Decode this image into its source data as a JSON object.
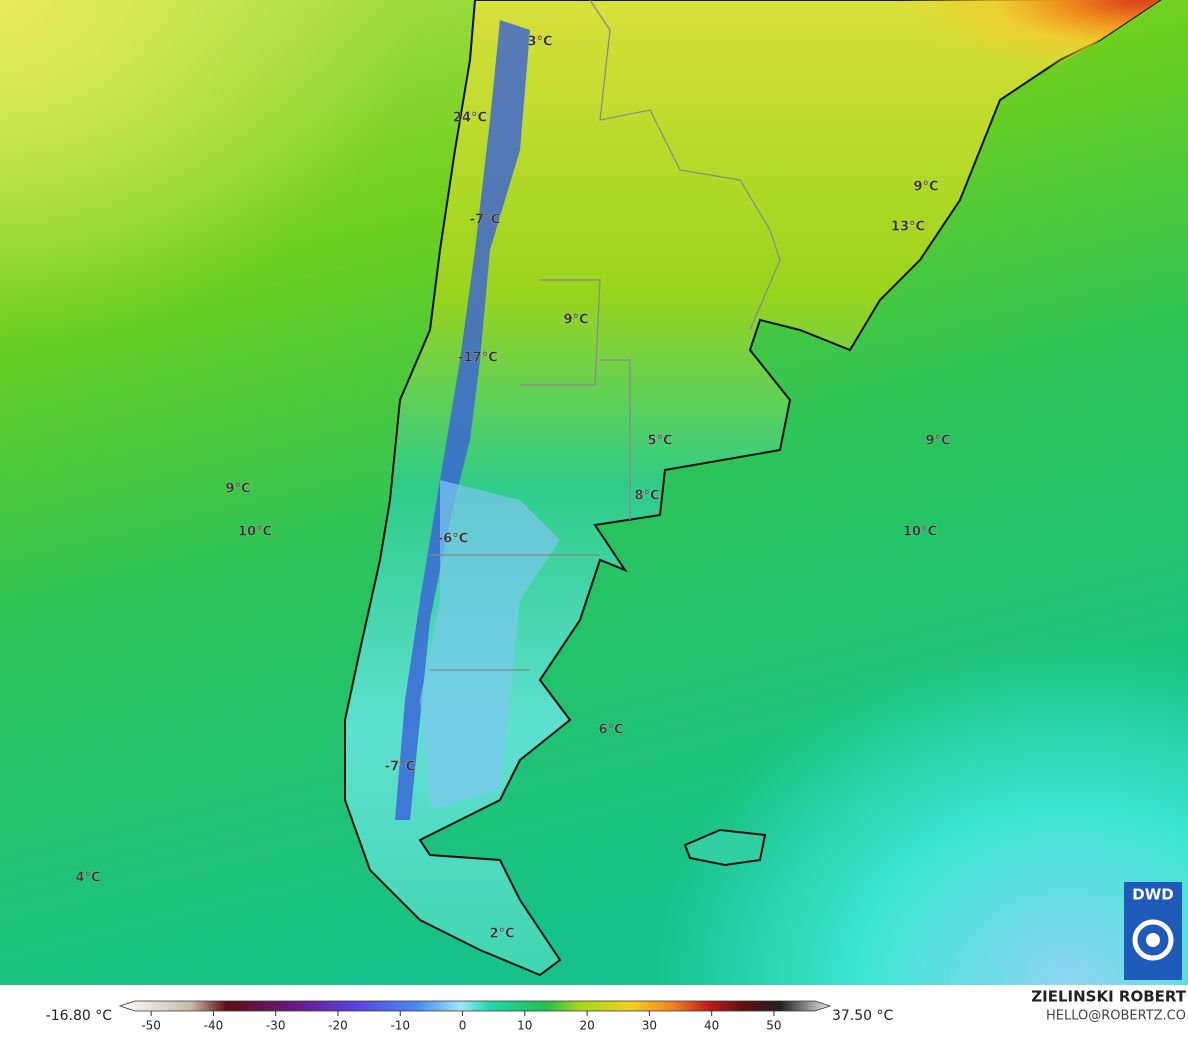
{
  "map_labels": [
    "3°C",
    "24°C",
    "-7°C",
    "9°C",
    "-17°C",
    "9°C",
    "13°C",
    "5°C",
    "9°C",
    "8°C",
    "9°C",
    "10°C",
    "-6°C",
    "10°C",
    "6°C",
    "-7°C",
    "4°C",
    "2°C"
  ],
  "logo": "DWD",
  "colorbar": {
    "min_label": "-16.80 °C",
    "max_label": "37.50 °C",
    "lim": [
      -55,
      59
    ],
    "ticks": [
      -50,
      -40,
      -30,
      -20,
      -10,
      0,
      10,
      20,
      30,
      40,
      50
    ]
  },
  "credit": {
    "name": "ZIELINSKI ROBERT",
    "contact": "HELLO@ROBERTZ.CO"
  }
}
